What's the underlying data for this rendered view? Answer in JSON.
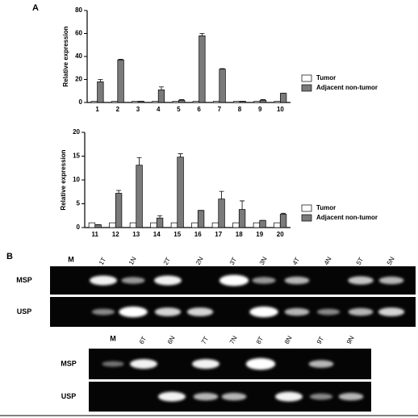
{
  "chart_data": [
    {
      "type": "bar",
      "panel_label": "A",
      "y_label": "Relative expression",
      "categories": [
        "1",
        "2",
        "3",
        "4",
        "5",
        "6",
        "7",
        "8",
        "9",
        "10"
      ],
      "series": [
        {
          "name": "Tumor",
          "color": "#ffffff",
          "values": [
            1,
            1,
            1,
            1,
            1,
            1,
            1,
            1,
            1,
            1
          ]
        },
        {
          "name": "Adjacent non-tumor",
          "color": "#7a7a7a",
          "values": [
            18,
            37,
            1,
            11,
            2,
            58,
            29,
            1,
            2,
            8
          ],
          "errors": [
            2,
            0.5,
            0,
            2.5,
            0.5,
            2,
            0.5,
            0,
            0.5,
            0
          ]
        }
      ],
      "ylim": [
        0,
        80
      ],
      "yticks": [
        0,
        20,
        40,
        60,
        80
      ]
    },
    {
      "type": "bar",
      "y_label": "Relative expression",
      "categories": [
        "11",
        "12",
        "13",
        "14",
        "15",
        "16",
        "17",
        "18",
        "19",
        "20"
      ],
      "series": [
        {
          "name": "Tumor",
          "color": "#ffffff",
          "values": [
            1,
            1,
            1,
            1,
            1,
            1,
            1,
            1,
            1,
            1
          ]
        },
        {
          "name": "Adjacent non-tumor",
          "color": "#7a7a7a",
          "values": [
            0.6,
            7.2,
            13.1,
            2,
            14.8,
            3.6,
            6,
            3.8,
            1.5,
            2.8
          ],
          "errors": [
            0,
            0.6,
            1.6,
            0.5,
            0.7,
            0,
            1.6,
            1.8,
            0,
            0.2
          ]
        }
      ],
      "ylim": [
        0,
        20
      ],
      "yticks": [
        0,
        5,
        10,
        15,
        20
      ]
    }
  ],
  "panel_b": {
    "label": "B",
    "gels": [
      {
        "lanes": [
          "M",
          "1T",
          "1N",
          "2T",
          "2N",
          "3T",
          "3N",
          "4T",
          "4N",
          "5T",
          "5N"
        ],
        "rows": [
          "MSP",
          "USP"
        ]
      },
      {
        "lanes": [
          "M",
          "6T",
          "6N",
          "7T",
          "7N",
          "8T",
          "8N",
          "9T",
          "9N"
        ],
        "rows": [
          "MSP",
          "USP"
        ]
      }
    ]
  }
}
